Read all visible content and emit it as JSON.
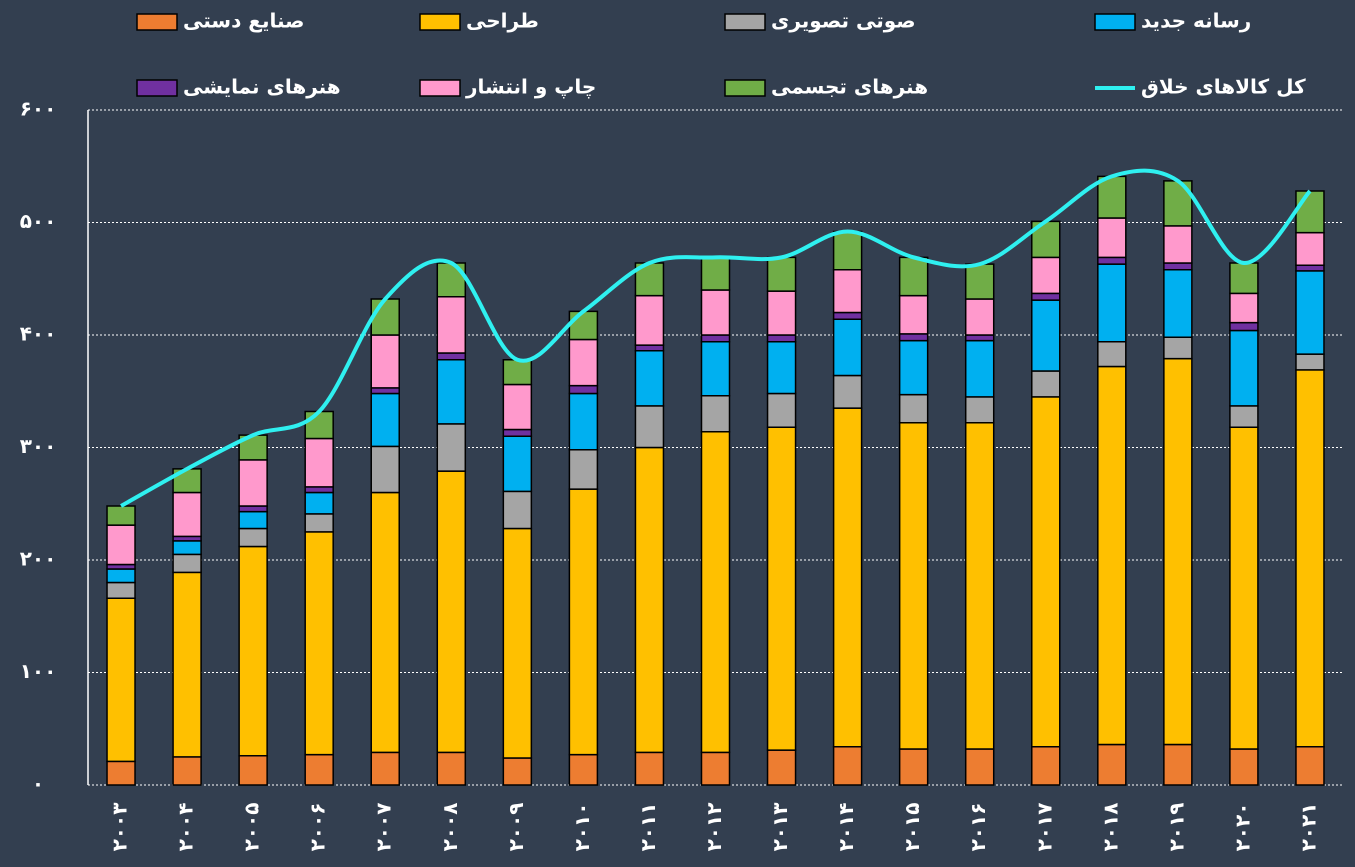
{
  "chart_data": {
    "type": "stacked_bar_line",
    "categories": [
      "۲۰۰۳",
      "۲۰۰۴",
      "۲۰۰۵",
      "۲۰۰۶",
      "۲۰۰۷",
      "۲۰۰۸",
      "۲۰۰۹",
      "۲۰۱۰",
      "۲۰۱۱",
      "۲۰۱۲",
      "۲۰۱۳",
      "۲۰۱۴",
      "۲۰۱۵",
      "۲۰۱۶",
      "۲۰۱۷",
      "۲۰۱۸",
      "۲۰۱۹",
      "۲۰۲۰",
      "۲۰۲۱"
    ],
    "series": [
      {
        "name": "صنایع دستی",
        "color": "#ed7d31",
        "values": [
          21,
          25,
          26,
          27,
          29,
          29,
          24,
          27,
          29,
          29,
          31,
          34,
          32,
          32,
          34,
          36,
          36,
          32,
          34
        ]
      },
      {
        "name": "طراحی",
        "color": "#ffc000",
        "values": [
          145,
          164,
          186,
          198,
          231,
          250,
          204,
          236,
          271,
          285,
          287,
          301,
          290,
          290,
          311,
          336,
          343,
          286,
          335
        ]
      },
      {
        "name": "صوتی تصویری",
        "color": "#a5a5a5",
        "values": [
          14,
          16,
          16,
          16,
          41,
          42,
          33,
          35,
          37,
          32,
          30,
          29,
          25,
          23,
          23,
          22,
          19,
          19,
          14
        ]
      },
      {
        "name": "رسانه جدید",
        "color": "#00b0f0",
        "values": [
          12,
          12,
          15,
          19,
          47,
          57,
          49,
          50,
          49,
          48,
          46,
          50,
          48,
          50,
          63,
          69,
          60,
          67,
          74
        ]
      },
      {
        "name": "هنرهای نمایشی",
        "color": "#7030a0",
        "values": [
          4,
          4,
          5,
          5,
          5,
          6,
          6,
          7,
          5,
          6,
          6,
          6,
          6,
          5,
          6,
          6,
          6,
          7,
          5
        ]
      },
      {
        "name": "چاپ و انتشار",
        "color": "#ff99cc",
        "values": [
          35,
          39,
          41,
          43,
          47,
          50,
          40,
          41,
          44,
          40,
          39,
          38,
          34,
          32,
          32,
          35,
          33,
          26,
          29
        ]
      },
      {
        "name": "هنرهای تجسمی",
        "color": "#70ad47",
        "values": [
          17,
          21,
          22,
          24,
          32,
          30,
          22,
          25,
          29,
          29,
          30,
          34,
          34,
          31,
          32,
          37,
          40,
          27,
          37
        ]
      },
      {
        "name": "کل کالاهای خلاق",
        "color": "#2ff0f0",
        "type": "line",
        "values": [
          248,
          281,
          311,
          332,
          432,
          464,
          378,
          421,
          464,
          469,
          469,
          492,
          469,
          463,
          501,
          541,
          537,
          464,
          528
        ]
      }
    ],
    "ylim": [
      0,
      600
    ],
    "yticks": [
      {
        "value": 0,
        "label": "۰"
      },
      {
        "value": 100,
        "label": "۱۰۰"
      },
      {
        "value": 200,
        "label": "۲۰۰"
      },
      {
        "value": 300,
        "label": "۳۰۰"
      },
      {
        "value": 400,
        "label": "۴۰۰"
      },
      {
        "value": 500,
        "label": "۵۰۰"
      },
      {
        "value": 600,
        "label": "۶۰۰"
      }
    ],
    "grid": true
  }
}
